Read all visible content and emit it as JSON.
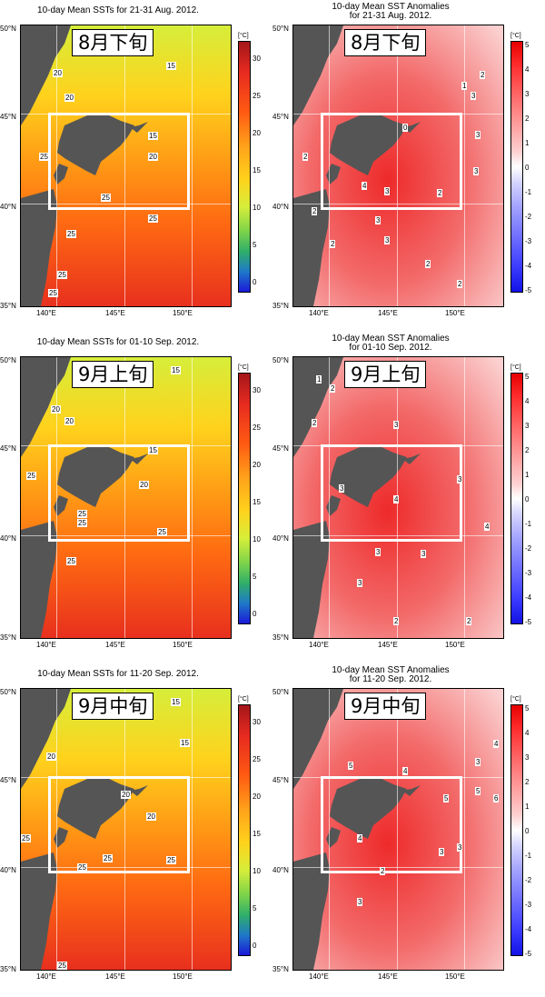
{
  "units_label": "[°C]",
  "lat_labels": [
    "50°N",
    "45°N",
    "40°N",
    "35°N"
  ],
  "lon_labels": [
    "140°E",
    "145°E",
    "150°E"
  ],
  "sst_colorbar_labels": [
    "30",
    "25",
    "20",
    "15",
    "10",
    "5",
    "0"
  ],
  "anom_colorbar_labels": [
    "5",
    "4",
    "3",
    "2",
    "1",
    "0",
    "-1",
    "-2",
    "-3",
    "-4",
    "-5"
  ],
  "colors": {
    "land": "#555555",
    "box": "#ffffff",
    "sst_warm": "#ee3322",
    "sst_mid": "#ffaa00",
    "sst_cool": "#ddee22",
    "anom_pos": "#ff4444",
    "anom_neg": "#3333ff"
  },
  "panels": [
    {
      "row": 1,
      "sst": {
        "title": "10-day Mean SSTs for 21-31 Aug. 2012.",
        "period": "8月下旬",
        "contour_labels": [
          "15",
          "20",
          "20",
          "15",
          "20",
          "25",
          "25",
          "25",
          "25",
          "25",
          "25"
        ]
      },
      "anom": {
        "title": "10-day Mean SST Anomalies",
        "subtitle": "for 21-31 Aug. 2012.",
        "period": "8月下旬",
        "contour_labels": [
          "2",
          "1",
          "3",
          "0",
          "3",
          "2",
          "3",
          "4",
          "3",
          "2",
          "2",
          "3",
          "2",
          "2",
          "2",
          "3"
        ]
      }
    },
    {
      "row": 2,
      "sst": {
        "title": "10-day Mean SSTs for 01-10 Sep. 2012.",
        "period": "9月上旬",
        "contour_labels": [
          "15",
          "20",
          "20",
          "15",
          "20",
          "25",
          "25",
          "25",
          "25",
          "25"
        ]
      },
      "anom": {
        "title": "10-day Mean SST Anomalies",
        "subtitle": "for 01-10 Sep. 2012.",
        "period": "9月上旬",
        "contour_labels": [
          "1",
          "2",
          "2",
          "3",
          "3",
          "4",
          "3",
          "4",
          "3",
          "3",
          "3",
          "2",
          "2"
        ]
      }
    },
    {
      "row": 3,
      "sst": {
        "title": "10-day Mean SSTs for 11-20 Sep. 2012.",
        "period": "9月中旬",
        "contour_labels": [
          "15",
          "15",
          "20",
          "20",
          "20",
          "25",
          "25",
          "25",
          "25",
          "25"
        ]
      },
      "anom": {
        "title": "10-day Mean SST Anomalies",
        "subtitle": "for 11-20 Sep. 2012.",
        "period": "9月中旬",
        "contour_labels": [
          "4",
          "3",
          "5",
          "4",
          "5",
          "6",
          "5",
          "4",
          "3",
          "3",
          "2",
          "3"
        ]
      }
    }
  ]
}
